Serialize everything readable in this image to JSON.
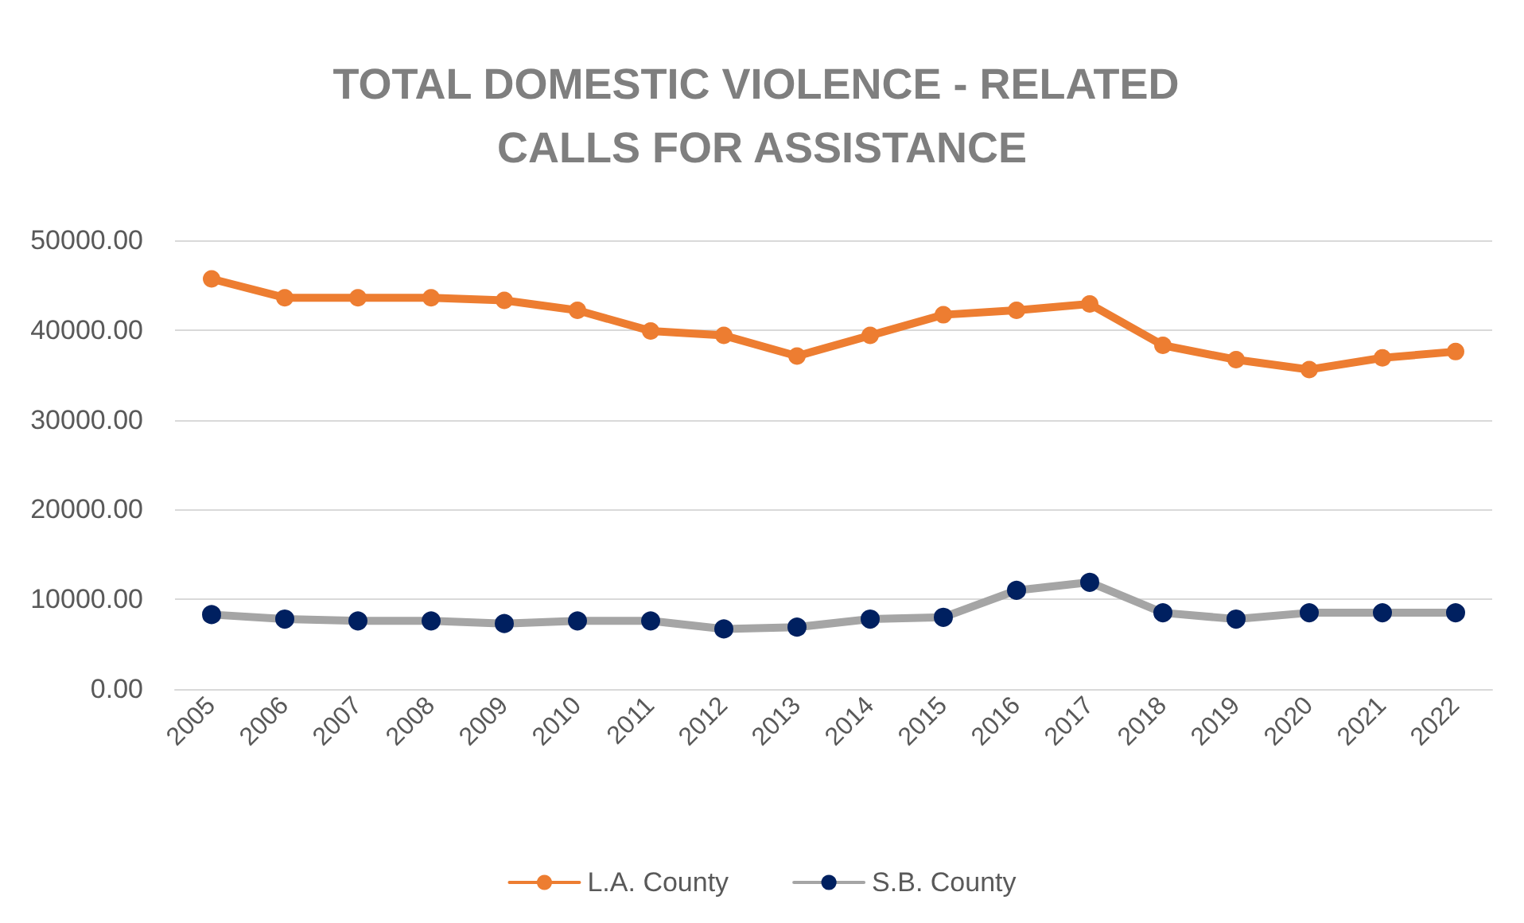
{
  "chart_data": {
    "type": "line",
    "title": "TOTAL DOMESTIC VIOLENCE - RELATED CALLS FOR ASSISTANCE",
    "categories": [
      "2005",
      "2006",
      "2007",
      "2008",
      "2009",
      "2010",
      "2011",
      "2012",
      "2013",
      "2014",
      "2015",
      "2016",
      "2017",
      "2018",
      "2019",
      "2020",
      "2021",
      "2022"
    ],
    "series": [
      {
        "name": "L.A. County",
        "color": "#ed7d31",
        "values": [
          45700,
          43600,
          43600,
          43600,
          43300,
          42200,
          39900,
          39400,
          37100,
          39400,
          41700,
          42200,
          42900,
          38300,
          36700,
          35600,
          36900,
          37600
        ]
      },
      {
        "name": "S.B. County",
        "color": "#a5a5a5",
        "values": [
          8300,
          7800,
          7600,
          7600,
          7300,
          7600,
          7600,
          6700,
          6900,
          7800,
          8000,
          11000,
          11900,
          8500,
          7800,
          8500,
          8500,
          8500
        ]
      }
    ],
    "ylim": [
      0,
      50000
    ],
    "yticks": [
      {
        "value": 0,
        "label": "0.00"
      },
      {
        "value": 10000,
        "label": "10000.00"
      },
      {
        "value": 20000,
        "label": "20000.00"
      },
      {
        "value": 30000,
        "label": "30000.00"
      },
      {
        "value": 40000,
        "label": "40000.00"
      },
      {
        "value": 50000,
        "label": "50000.00"
      }
    ],
    "grid": "y",
    "legend": "bottom",
    "marker": "circle",
    "line_style": "solid"
  }
}
